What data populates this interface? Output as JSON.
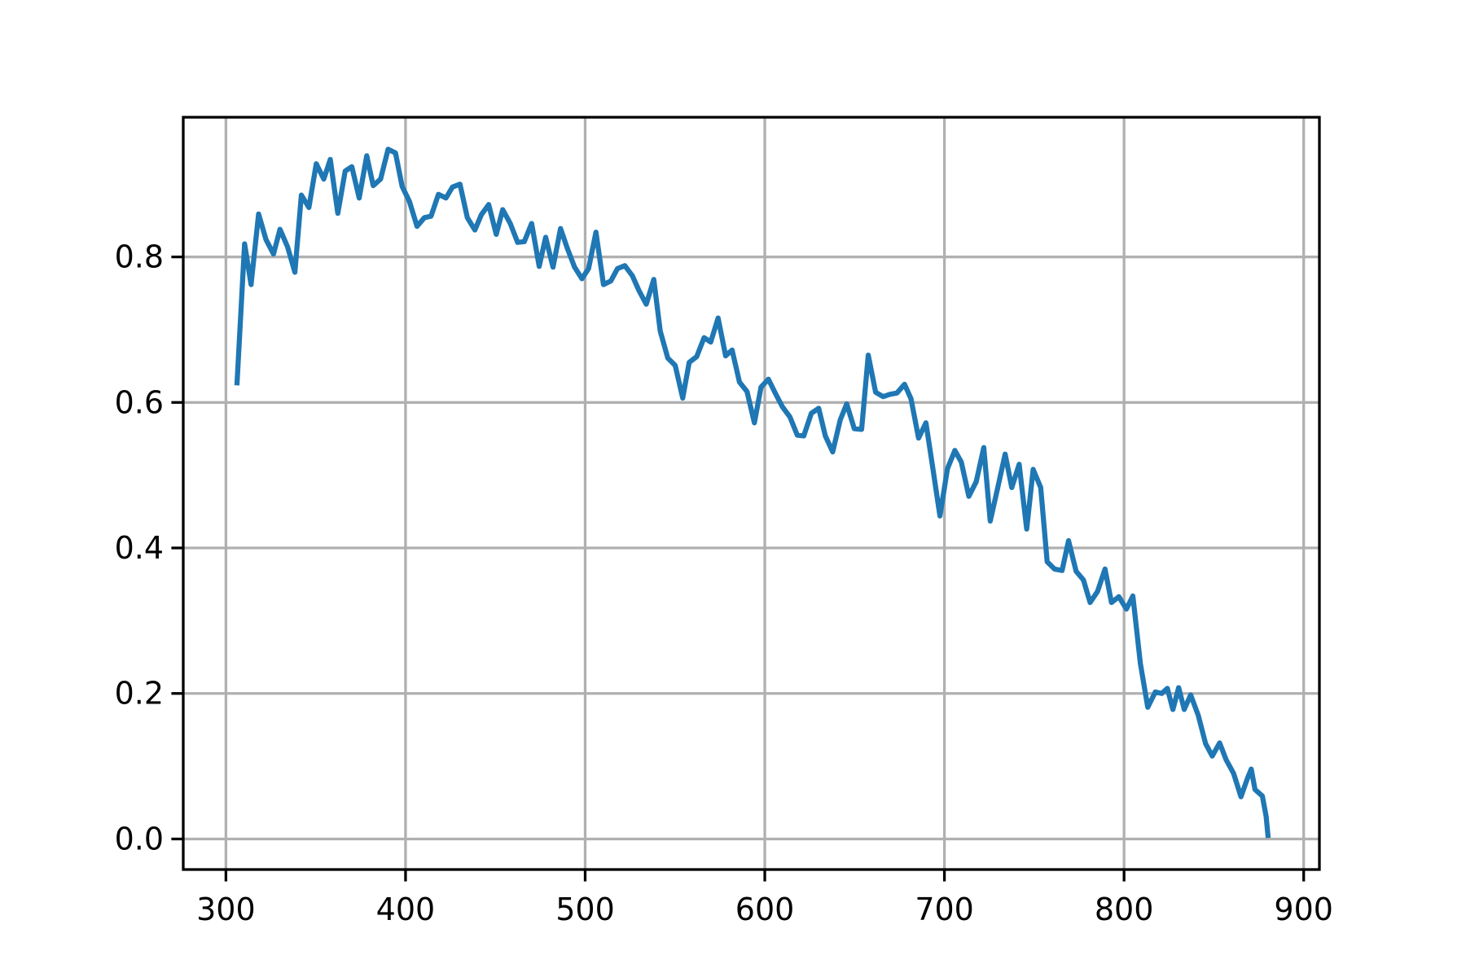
{
  "chart_data": {
    "type": "line",
    "grid": true,
    "xlim": [
      276.25,
      908.75
    ],
    "ylim": [
      -0.042,
      0.992
    ],
    "xticks": [
      300,
      400,
      500,
      600,
      700,
      800,
      900
    ],
    "yticks": [
      {
        "value": 0,
        "label": "0.0"
      },
      0.2,
      0.4,
      0.6,
      0.8
    ],
    "series": [
      {
        "color": "#1f77b4",
        "x": [
          306.2,
          310.4,
          314.0,
          318.2,
          322.3,
          326.5,
          330.1,
          334.3,
          338.4,
          342.0,
          346.2,
          350.3,
          354.5,
          358.1,
          362.3,
          366.4,
          370.1,
          374.2,
          378.4,
          382.0,
          386.1,
          390.3,
          394.4,
          398.1,
          402.2,
          406.4,
          410.5,
          414.2,
          418.3,
          422.5,
          426.1,
          430.3,
          434.4,
          438.6,
          442.2,
          446.3,
          450.5,
          454.1,
          458.3,
          462.4,
          466.1,
          470.2,
          474.4,
          478.0,
          482.1,
          486.3,
          489.9,
          494.1,
          498.2,
          501.9,
          506.0,
          510.2,
          514.3,
          518.0,
          522.1,
          526.3,
          529.9,
          534.0,
          538.2,
          541.8,
          546.0,
          550.1,
          554.3,
          557.9,
          562.1,
          566.2,
          569.9,
          574.0,
          578.2,
          581.8,
          585.9,
          590.1,
          594.2,
          597.9,
          602.0,
          606.2,
          609.8,
          614.0,
          618.1,
          621.7,
          625.9,
          630.0,
          633.7,
          637.8,
          642.0,
          645.6,
          649.8,
          653.9,
          657.6,
          661.7,
          665.9,
          669.5,
          673.6,
          677.8,
          681.4,
          685.6,
          689.7,
          693.4,
          697.5,
          701.7,
          705.8,
          709.4,
          713.6,
          717.7,
          721.9,
          725.5,
          729.7,
          733.8,
          737.5,
          741.6,
          745.8,
          749.4,
          753.6,
          757.2,
          761.3,
          765.5,
          769.1,
          773.3,
          777.4,
          781.1,
          785.2,
          789.4,
          793.0,
          797.1,
          801.3,
          804.9,
          809.1,
          813.2,
          817.4,
          821.0,
          824.1,
          827.2,
          830.4,
          833.5,
          837.1,
          841.3,
          845.4,
          849.1,
          853.2,
          856.8,
          861.0,
          865.1,
          868.8,
          870.8,
          872.9,
          877.0,
          879.1,
          880.1
        ],
        "values": [
          0.627,
          0.818,
          0.762,
          0.859,
          0.824,
          0.804,
          0.838,
          0.814,
          0.779,
          0.885,
          0.868,
          0.928,
          0.907,
          0.934,
          0.86,
          0.918,
          0.924,
          0.881,
          0.939,
          0.898,
          0.907,
          0.948,
          0.943,
          0.897,
          0.876,
          0.842,
          0.854,
          0.856,
          0.886,
          0.881,
          0.896,
          0.9,
          0.854,
          0.837,
          0.858,
          0.872,
          0.831,
          0.865,
          0.846,
          0.82,
          0.821,
          0.846,
          0.787,
          0.827,
          0.786,
          0.839,
          0.813,
          0.786,
          0.77,
          0.784,
          0.834,
          0.762,
          0.767,
          0.784,
          0.788,
          0.774,
          0.754,
          0.735,
          0.769,
          0.698,
          0.661,
          0.651,
          0.606,
          0.655,
          0.663,
          0.689,
          0.683,
          0.716,
          0.664,
          0.672,
          0.628,
          0.615,
          0.572,
          0.621,
          0.632,
          0.611,
          0.594,
          0.58,
          0.555,
          0.554,
          0.585,
          0.592,
          0.554,
          0.532,
          0.576,
          0.598,
          0.564,
          0.563,
          0.665,
          0.614,
          0.608,
          0.611,
          0.613,
          0.625,
          0.605,
          0.551,
          0.572,
          0.512,
          0.444,
          0.509,
          0.534,
          0.518,
          0.471,
          0.491,
          0.538,
          0.437,
          0.483,
          0.529,
          0.483,
          0.515,
          0.426,
          0.508,
          0.483,
          0.381,
          0.371,
          0.369,
          0.41,
          0.368,
          0.356,
          0.325,
          0.34,
          0.371,
          0.325,
          0.333,
          0.316,
          0.334,
          0.241,
          0.181,
          0.202,
          0.2,
          0.207,
          0.178,
          0.208,
          0.178,
          0.198,
          0.17,
          0.131,
          0.114,
          0.132,
          0.109,
          0.09,
          0.058,
          0.084,
          0.096,
          0.068,
          0.059,
          0.031,
          0.005
        ]
      }
    ]
  }
}
